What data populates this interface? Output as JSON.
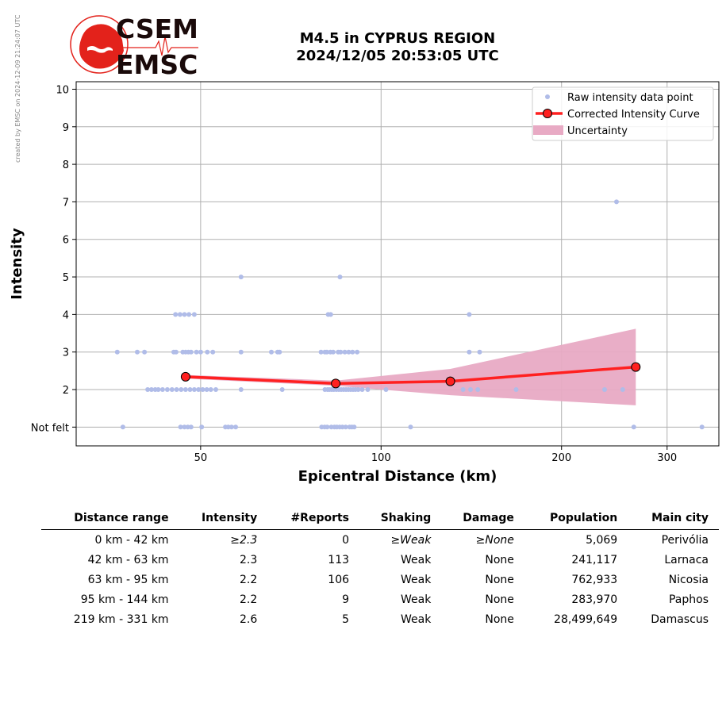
{
  "credit": "created by EMSC on 2024-12-09 21:24:07 UTC",
  "logo": {
    "line1": "CSEM",
    "line2": "EMSC",
    "red": "#e3221b",
    "dark": "#1a0a0a"
  },
  "title": {
    "line1": "M4.5 in CYPRUS REGION",
    "line2": "2024/12/05 20:53:05 UTC"
  },
  "chart_data": {
    "type": "scatter",
    "xlabel": "Epicentral Distance (km)",
    "ylabel": "Intensity",
    "x_scale": "log",
    "xlim": [
      31,
      366
    ],
    "ylim": [
      0.5,
      10.2
    ],
    "x_ticks": [
      50,
      100,
      200,
      300
    ],
    "y_ticks": [
      1,
      2,
      3,
      4,
      5,
      6,
      7,
      8,
      9,
      10
    ],
    "y_tick_labels": [
      "Not felt",
      "2",
      "3",
      "4",
      "5",
      "6",
      "7",
      "8",
      "9",
      "10"
    ],
    "grid": true,
    "legend_position": "top-right",
    "legend": [
      "Raw intensity data point",
      "Corrected Intensity Curve",
      "Uncertainty"
    ],
    "colors": {
      "raw": "#b0bce8",
      "curve": "#ff2020",
      "marker_edge": "#000000",
      "band": "#e8aac4",
      "grid": "#b0b0b0"
    },
    "series": [
      {
        "name": "Raw intensity data point",
        "type": "scatter",
        "points": [
          [
            36.3,
            3
          ],
          [
            39.2,
            3
          ],
          [
            40.3,
            3
          ],
          [
            45.1,
            3
          ],
          [
            45.5,
            3
          ],
          [
            46.7,
            3
          ],
          [
            47.2,
            3
          ],
          [
            47.7,
            3
          ],
          [
            48.2,
            3
          ],
          [
            49.2,
            3
          ],
          [
            50.0,
            3
          ],
          [
            51.3,
            3
          ],
          [
            52.4,
            3
          ],
          [
            58.4,
            3
          ],
          [
            65.6,
            3
          ],
          [
            67.2,
            3
          ],
          [
            67.7,
            3
          ],
          [
            79.4,
            3
          ],
          [
            80.6,
            3
          ],
          [
            81.2,
            3
          ],
          [
            82.3,
            3
          ],
          [
            83.2,
            3
          ],
          [
            84.8,
            3
          ],
          [
            85.6,
            3
          ],
          [
            87.0,
            3
          ],
          [
            88.3,
            3
          ],
          [
            89.6,
            3
          ],
          [
            91.2,
            3
          ],
          [
            140.3,
            3
          ],
          [
            146.0,
            3
          ],
          [
            40.8,
            2
          ],
          [
            41.4,
            2
          ],
          [
            42.0,
            2
          ],
          [
            42.5,
            2
          ],
          [
            43.2,
            2
          ],
          [
            44.0,
            2
          ],
          [
            44.8,
            2
          ],
          [
            45.6,
            2
          ],
          [
            46.4,
            2
          ],
          [
            47.2,
            2
          ],
          [
            48.0,
            2
          ],
          [
            48.8,
            2
          ],
          [
            49.6,
            2
          ],
          [
            50.4,
            2
          ],
          [
            51.2,
            2
          ],
          [
            52.0,
            2
          ],
          [
            53.0,
            2
          ],
          [
            58.4,
            2
          ],
          [
            68.4,
            2
          ],
          [
            80.6,
            2
          ],
          [
            81.4,
            2
          ],
          [
            82.0,
            2
          ],
          [
            82.7,
            2
          ],
          [
            83.4,
            2
          ],
          [
            84.2,
            2
          ],
          [
            85.0,
            2
          ],
          [
            85.8,
            2
          ],
          [
            86.6,
            2
          ],
          [
            87.4,
            2
          ],
          [
            88.2,
            2
          ],
          [
            89.0,
            2
          ],
          [
            89.8,
            2
          ],
          [
            90.6,
            2
          ],
          [
            91.6,
            2
          ],
          [
            93.0,
            2
          ],
          [
            95.0,
            2
          ],
          [
            101.9,
            2
          ],
          [
            137.0,
            2
          ],
          [
            141.0,
            2
          ],
          [
            145.0,
            2
          ],
          [
            168.0,
            2
          ],
          [
            236.0,
            2
          ],
          [
            253.0,
            2
          ],
          [
            37.1,
            1
          ],
          [
            46.3,
            1
          ],
          [
            47.0,
            1
          ],
          [
            47.6,
            1
          ],
          [
            48.2,
            1
          ],
          [
            50.2,
            1
          ],
          [
            55.0,
            1
          ],
          [
            55.6,
            1
          ],
          [
            56.3,
            1
          ],
          [
            57.2,
            1
          ],
          [
            79.6,
            1
          ],
          [
            80.5,
            1
          ],
          [
            81.3,
            1
          ],
          [
            82.6,
            1
          ],
          [
            83.6,
            1
          ],
          [
            84.4,
            1
          ],
          [
            85.3,
            1
          ],
          [
            86.2,
            1
          ],
          [
            87.3,
            1
          ],
          [
            88.6,
            1
          ],
          [
            89.4,
            1
          ],
          [
            90.2,
            1
          ],
          [
            112.0,
            1
          ],
          [
            264.0,
            1
          ],
          [
            343.0,
            1
          ],
          [
            45.4,
            4
          ],
          [
            46.2,
            4
          ],
          [
            47.0,
            4
          ],
          [
            47.8,
            4
          ],
          [
            48.8,
            4
          ],
          [
            81.6,
            4
          ],
          [
            82.4,
            4
          ],
          [
            140.3,
            4
          ],
          [
            58.4,
            5
          ],
          [
            85.4,
            5
          ],
          [
            247.0,
            7
          ]
        ]
      },
      {
        "name": "Corrected Intensity Curve",
        "type": "line",
        "x": [
          47.2,
          84.0,
          130.5,
          266.0
        ],
        "y": [
          2.34,
          2.16,
          2.22,
          2.6
        ]
      },
      {
        "name": "Uncertainty",
        "type": "band",
        "x": [
          47.2,
          84.0,
          130.5,
          266.0
        ],
        "lower": [
          2.29,
          2.1,
          1.85,
          1.58
        ],
        "upper": [
          2.39,
          2.24,
          2.55,
          3.62
        ]
      }
    ]
  },
  "table": {
    "headers": [
      "Distance range",
      "Intensity",
      "#Reports",
      "Shaking",
      "Damage",
      "Population",
      "Main city"
    ],
    "rows": [
      {
        "range": "0 km -   42 km",
        "intensity": "≥2.3",
        "reports": "0",
        "shaking": "≥Weak",
        "damage": "≥None",
        "population": "5,069",
        "city": "Perivólia",
        "italic": true
      },
      {
        "range": "42 km -   63 km",
        "intensity": "2.3",
        "reports": "113",
        "shaking": "Weak",
        "damage": "None",
        "population": "241,117",
        "city": "Larnaca",
        "italic": false
      },
      {
        "range": "63 km -   95 km",
        "intensity": "2.2",
        "reports": "106",
        "shaking": "Weak",
        "damage": "None",
        "population": "762,933",
        "city": "Nicosia",
        "italic": false
      },
      {
        "range": "95 km -  144 km",
        "intensity": "2.2",
        "reports": "9",
        "shaking": "Weak",
        "damage": "None",
        "population": "283,970",
        "city": "Paphos",
        "italic": false
      },
      {
        "range": "219 km -  331 km",
        "intensity": "2.6",
        "reports": "5",
        "shaking": "Weak",
        "damage": "None",
        "population": "28,499,649",
        "city": "Damascus",
        "italic": false
      }
    ]
  }
}
